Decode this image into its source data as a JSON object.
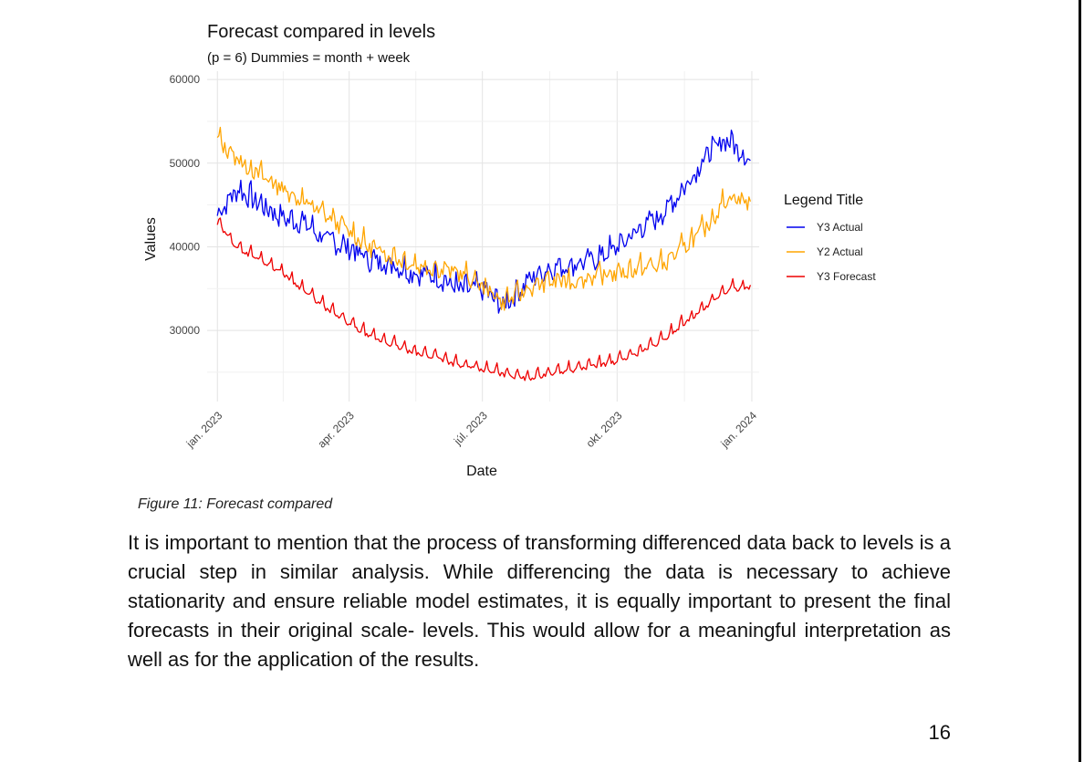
{
  "figure": {
    "caption": "Figure 11: Forecast compared"
  },
  "body_text": "It is important to mention that the process of transforming differenced data back to levels is a crucial step in similar analysis. While differencing the data is necessary to achieve stationarity and ensure reliable model estimates, it is equally important to present the final forecasts in their original scale- levels. This would allow for a meaningful interpretation as well as for the application of the results.",
  "page_number": "16",
  "chart_data": {
    "type": "line",
    "title": "Forecast compared in levels",
    "subtitle": "(p = 6) Dummies = month + week",
    "xlabel": "Date",
    "ylabel": "Values",
    "x_tick_labels": [
      "jan. 2023",
      "apr. 2023",
      "júl. 2023",
      "okt. 2023",
      "jan. 2024"
    ],
    "y_ticks": [
      30000,
      40000,
      50000,
      60000
    ],
    "ylim": [
      21500,
      61000
    ],
    "grid": true,
    "legend": {
      "title": "Legend Title",
      "placement": "right"
    },
    "x": [
      "2023-01-01",
      "2023-01-15",
      "2023-02-01",
      "2023-02-15",
      "2023-03-01",
      "2023-03-15",
      "2023-04-01",
      "2023-04-15",
      "2023-05-01",
      "2023-05-15",
      "2023-06-01",
      "2023-06-15",
      "2023-07-01",
      "2023-07-15",
      "2023-08-01",
      "2023-08-15",
      "2023-09-01",
      "2023-09-15",
      "2023-10-01",
      "2023-10-15",
      "2023-11-01",
      "2023-11-15",
      "2023-12-01",
      "2023-12-15",
      "2023-12-31"
    ],
    "series": [
      {
        "name": "Y3 Actual",
        "color": "#0000ee",
        "values": [
          44000,
          47000,
          45000,
          43500,
          43000,
          41000,
          40000,
          38500,
          38000,
          37000,
          36500,
          35000,
          35000,
          33000,
          36000,
          37500,
          38000,
          38500,
          40000,
          42000,
          44000,
          47000,
          51000,
          53000,
          50500
        ]
      },
      {
        "name": "Y2 Actual",
        "color": "#ffa500",
        "values": [
          53000,
          50500,
          48500,
          47000,
          45500,
          44000,
          42000,
          40000,
          39000,
          38000,
          37500,
          37000,
          35500,
          33500,
          35000,
          36000,
          36000,
          36500,
          37000,
          37500,
          38000,
          40000,
          42500,
          46000,
          45500
        ]
      },
      {
        "name": "Y3 Forecast",
        "color": "#ee0000",
        "values": [
          43000,
          40000,
          38500,
          37000,
          35000,
          33000,
          31000,
          29500,
          28500,
          27500,
          27000,
          26000,
          25500,
          25000,
          24500,
          25000,
          25500,
          26000,
          26500,
          27500,
          29000,
          31000,
          33000,
          35000,
          35500
        ]
      }
    ]
  }
}
